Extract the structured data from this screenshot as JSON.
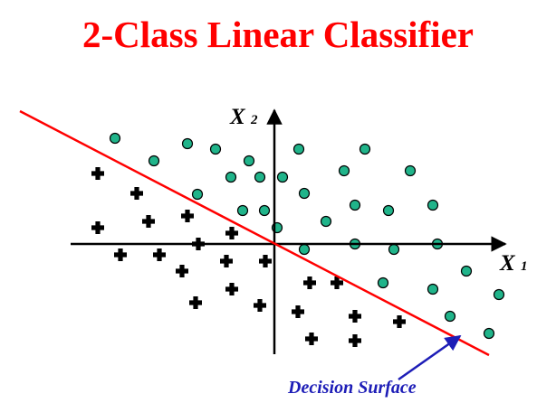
{
  "title": "2-Class Linear Classifier",
  "colors": {
    "title": "#ff0000",
    "decision_line": "#ff0000",
    "positive_point": "#20b48a",
    "negative_point": "#000000",
    "annotation": "#1d1db7"
  },
  "axes": {
    "x_label": "X",
    "x_subscript": "1",
    "y_label": "X",
    "y_subscript": "2"
  },
  "annotation": {
    "label": "Decision Surface"
  }
}
